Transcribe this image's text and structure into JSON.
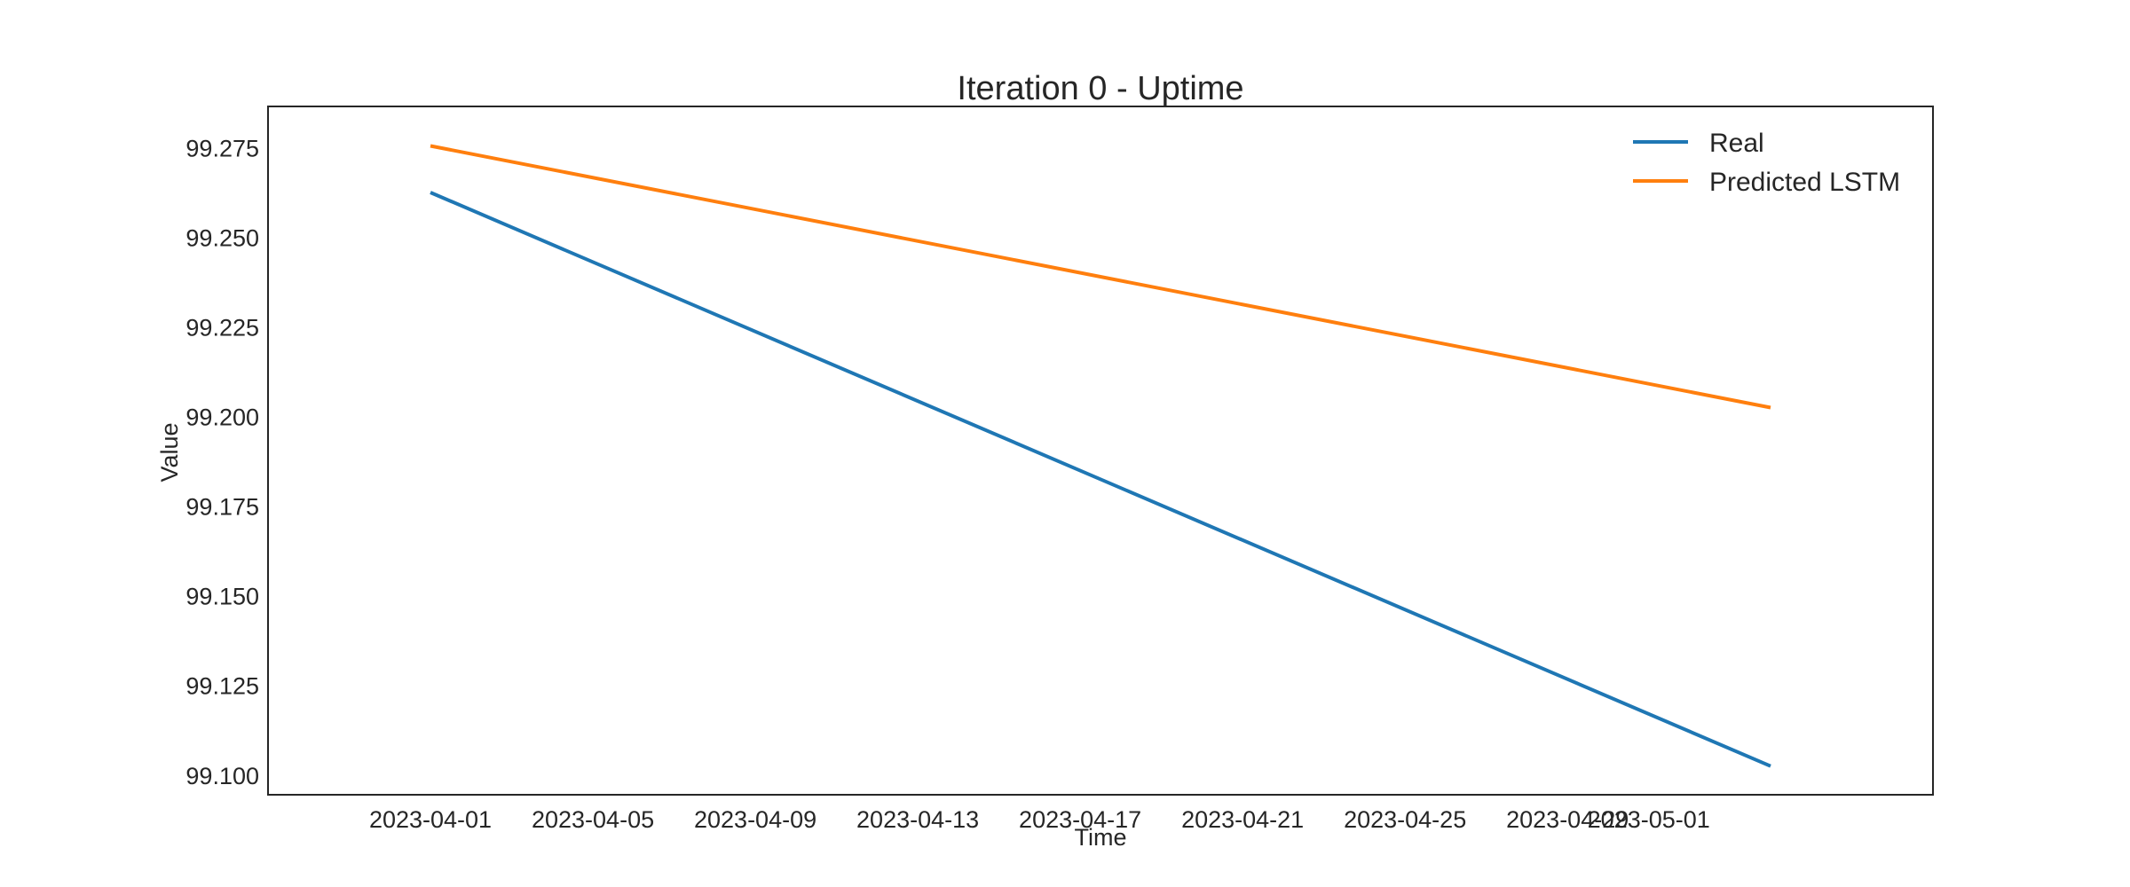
{
  "chart_data": {
    "type": "line",
    "title": "Iteration 0 - Uptime",
    "xlabel": "Time",
    "ylabel": "Value",
    "x_type": "date",
    "xlim": [
      "2023-03-28",
      "2023-05-08"
    ],
    "ylim": [
      99.0945,
      99.2865
    ],
    "x_ticks": [
      "2023-04-01",
      "2023-04-05",
      "2023-04-09",
      "2023-04-13",
      "2023-04-17",
      "2023-04-21",
      "2023-04-25",
      "2023-04-29",
      "2023-05-01"
    ],
    "y_ticks": [
      99.1,
      99.125,
      99.15,
      99.175,
      99.2,
      99.225,
      99.25,
      99.275
    ],
    "y_tick_labels": [
      "99.100",
      "99.125",
      "99.150",
      "99.175",
      "99.200",
      "99.225",
      "99.250",
      "99.275"
    ],
    "grid": false,
    "legend_position": "top-right",
    "series": [
      {
        "name": "Real",
        "color": "#1f77b4",
        "x": [
          "2023-04-01",
          "2023-05-04"
        ],
        "y": [
          99.2625,
          99.1025
        ]
      },
      {
        "name": "Predicted LSTM",
        "color": "#ff7f0e",
        "x": [
          "2023-04-01",
          "2023-05-04"
        ],
        "y": [
          99.2755,
          99.2025
        ]
      }
    ]
  }
}
